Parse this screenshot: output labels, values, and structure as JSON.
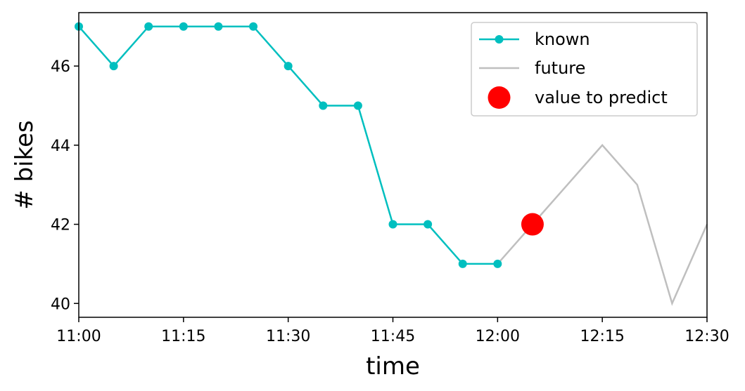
{
  "chart_data": {
    "type": "line",
    "xlabel": "time",
    "ylabel": "# bikes",
    "xlim": [
      "11:00",
      "12:30"
    ],
    "ylim": [
      39.65,
      47.35
    ],
    "x_ticks": [
      "11:00",
      "11:15",
      "11:30",
      "11:45",
      "12:00",
      "12:15",
      "12:30"
    ],
    "y_ticks": [
      40,
      42,
      44,
      46
    ],
    "grid": false,
    "legend_position": "top-right",
    "series": [
      {
        "name": "known",
        "color": "#00bfbf",
        "style": "line-with-markers",
        "x": [
          "11:00",
          "11:05",
          "11:10",
          "11:15",
          "11:20",
          "11:25",
          "11:30",
          "11:35",
          "11:40",
          "11:45",
          "11:50",
          "11:55",
          "12:00"
        ],
        "y": [
          47,
          46,
          47,
          47,
          47,
          47,
          46,
          45,
          45,
          42,
          42,
          41,
          41
        ]
      },
      {
        "name": "future",
        "color": "#bfbfbf",
        "style": "line",
        "x": [
          "12:00",
          "12:05",
          "12:10",
          "12:15",
          "12:20",
          "12:25",
          "12:30"
        ],
        "y": [
          41,
          42,
          43,
          44,
          43,
          40,
          42
        ]
      },
      {
        "name": "value to predict",
        "color": "#ff0000",
        "style": "marker",
        "x": [
          "12:05"
        ],
        "y": [
          42
        ]
      }
    ]
  }
}
